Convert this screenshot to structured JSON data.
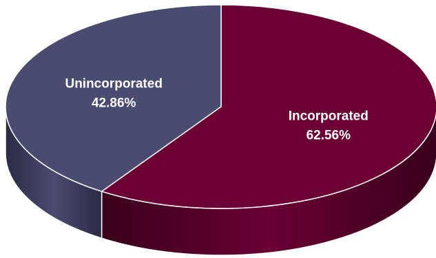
{
  "chart_data": {
    "type": "pie",
    "style": "3d",
    "title": "",
    "slices": [
      {
        "name": "Incorporated",
        "value": 62.56,
        "value_label": "62.56%",
        "color": "#6a0034",
        "side_color": "#3a001d"
      },
      {
        "name": "Unincorporated",
        "value": 42.86,
        "value_label": "42.86%",
        "color": "#4a4b70",
        "side_color": "#2a2b44"
      }
    ],
    "legend": "none",
    "data_labels": "inside"
  }
}
